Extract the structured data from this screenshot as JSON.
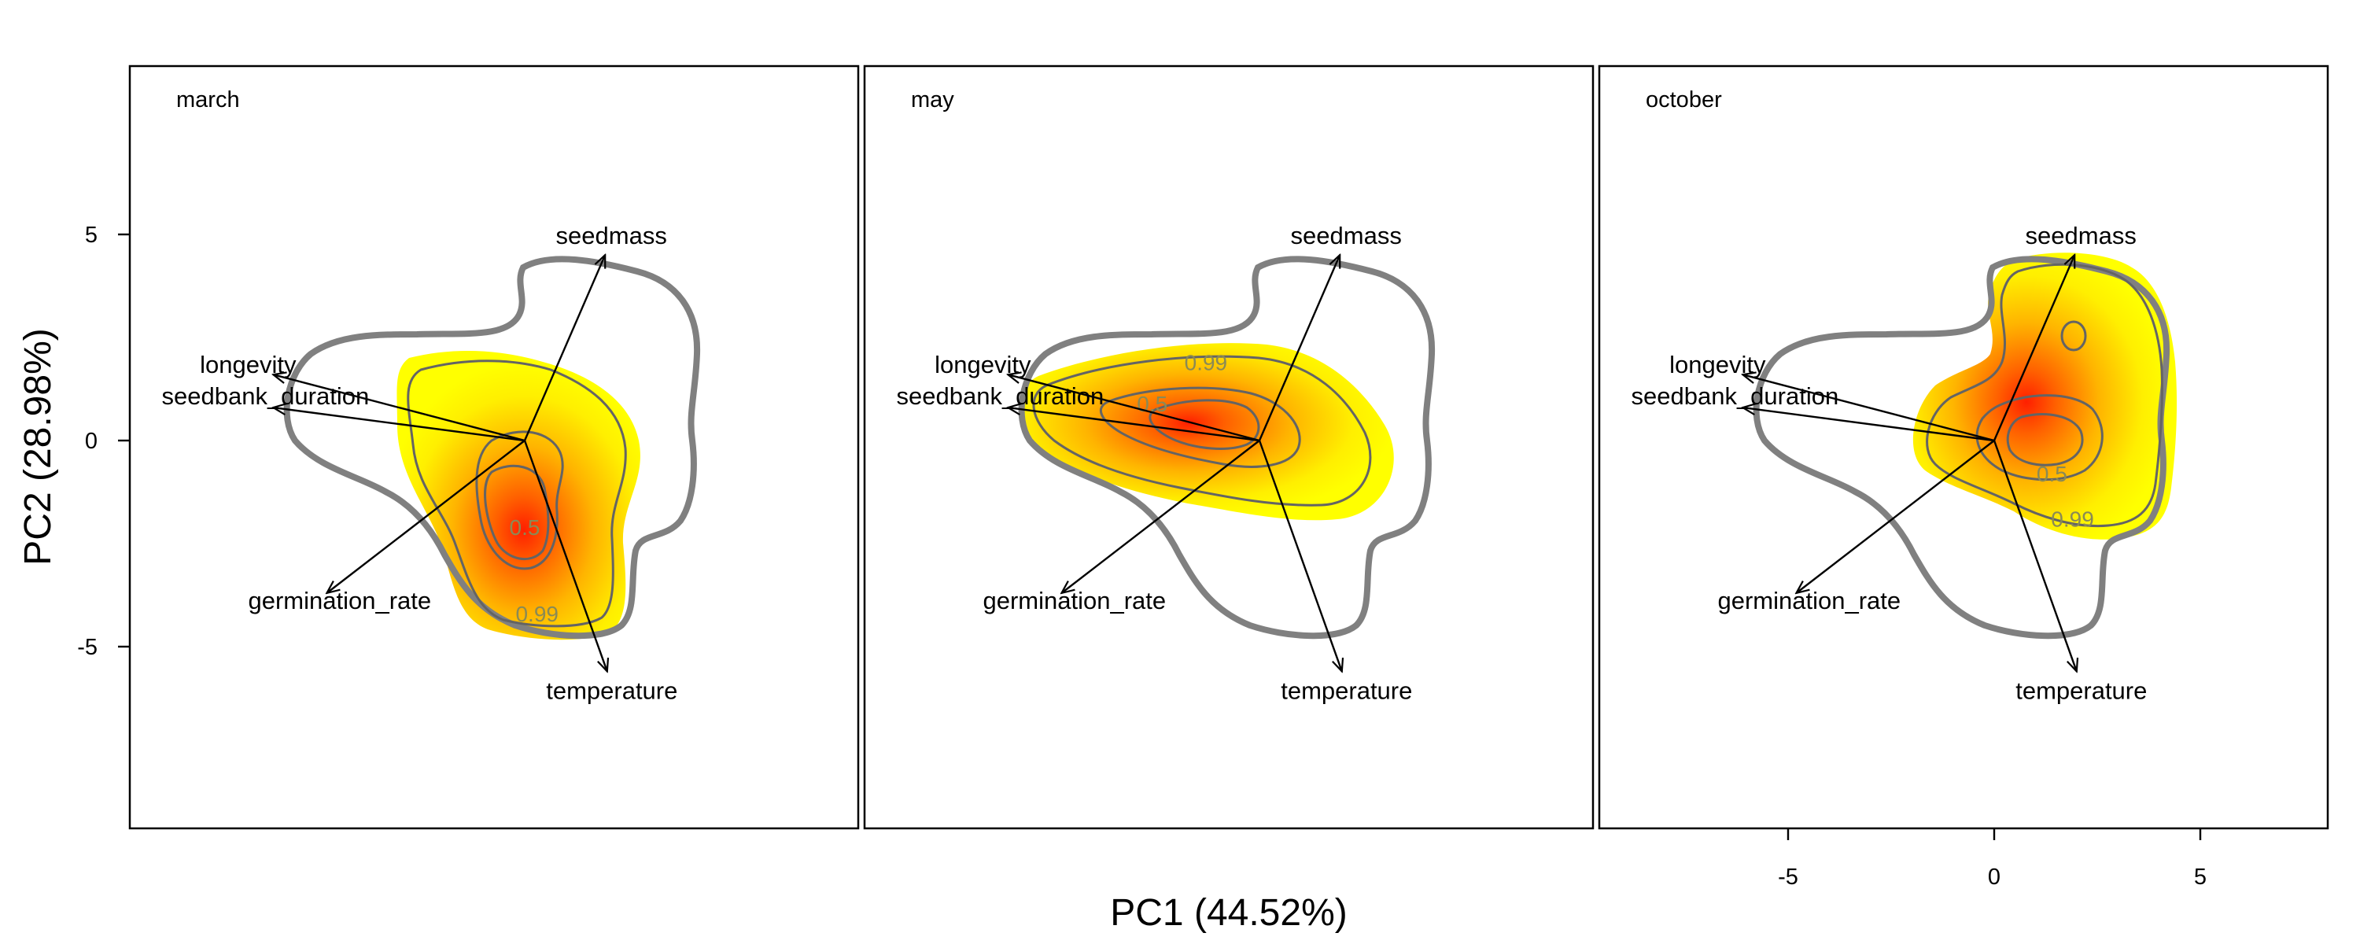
{
  "chart_data": {
    "type": "scatter",
    "title": "",
    "xlabel": "PC1 (44.52%)",
    "ylabel": "PC2 (28.98%)",
    "xlim": [
      -10.5,
      8
    ],
    "ylim": [
      -9.3,
      9.1
    ],
    "x_ticks": [
      -5,
      0,
      5
    ],
    "x_tick_labels": [
      "-5",
      "0",
      "5"
    ],
    "y_ticks": [
      5,
      0,
      -5
    ],
    "y_tick_labels": [
      "5",
      "0",
      "-5"
    ],
    "grid": false,
    "legend": "none",
    "colors": {
      "density_low": "#ffff00",
      "density_mid": "#ffa500",
      "density_high": "#ff2000",
      "overall_hull": "#808080",
      "contour": "#646464",
      "arrow": "#000000"
    },
    "contour_levels": [
      "0.5",
      "0.99"
    ],
    "variables": [
      {
        "name": "seedmass",
        "x": 1.95,
        "y": 4.5
      },
      {
        "name": "longevity",
        "x": -6.1,
        "y": 1.6
      },
      {
        "name": "seedbank_duration",
        "x": -6.1,
        "y": 0.8
      },
      {
        "name": "germination_rate",
        "x": -4.8,
        "y": -3.7
      },
      {
        "name": "temperature",
        "x": 2.0,
        "y": -5.6
      }
    ],
    "panels": [
      {
        "label": "march",
        "density_peak": {
          "x": 0.0,
          "y": -1.4
        },
        "contour_label_positions": [
          {
            "text": "0.5",
            "x": 0.0,
            "y": -2.1
          },
          {
            "text": "0.99",
            "x": 0.3,
            "y": -4.2
          }
        ]
      },
      {
        "label": "may",
        "density_peak": {
          "x": -1.3,
          "y": 0.4
        },
        "contour_label_positions": [
          {
            "text": "0.5",
            "x": -2.6,
            "y": 0.9
          },
          {
            "text": "0.99",
            "x": -1.3,
            "y": 1.9
          }
        ]
      },
      {
        "label": "october",
        "density_peak": {
          "x": 1.4,
          "y": 0.0
        },
        "contour_label_positions": [
          {
            "text": "0.5",
            "x": 1.4,
            "y": -0.8
          },
          {
            "text": "0.99",
            "x": 1.9,
            "y": -1.9
          }
        ]
      }
    ]
  }
}
